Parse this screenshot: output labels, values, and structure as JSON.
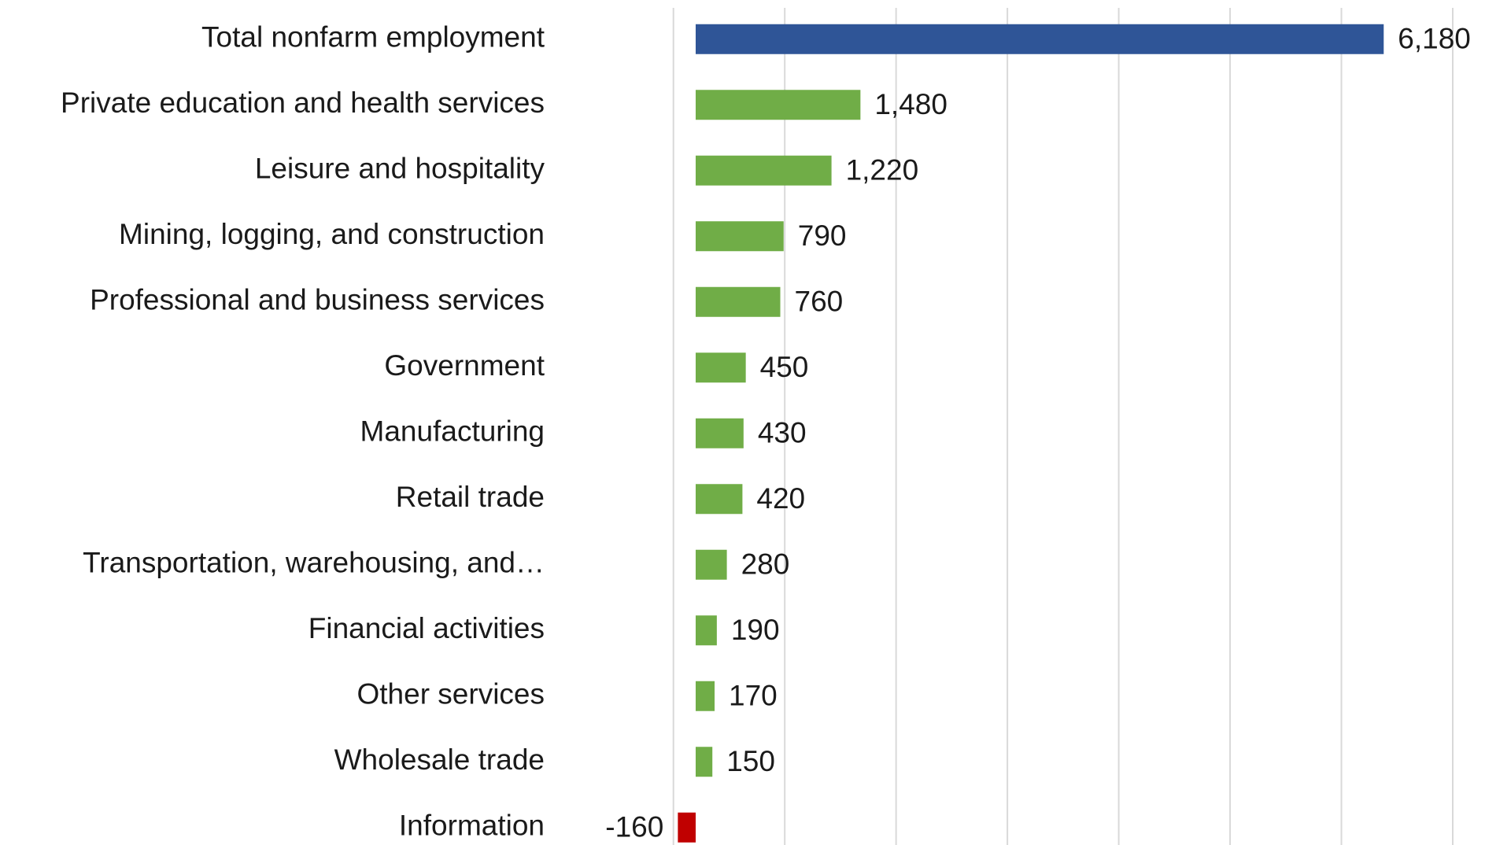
{
  "chart_data": {
    "type": "barh",
    "categories": [
      "Total nonfarm employment",
      "Private education and health services",
      "Leisure and hospitality",
      "Mining, logging, and construction",
      "Professional and business services",
      "Government",
      "Manufacturing",
      "Retail trade",
      "Transportation, warehousing, and…",
      "Financial activities",
      "Other services",
      "Wholesale trade",
      "Information"
    ],
    "values": [
      6180,
      1480,
      1220,
      790,
      760,
      450,
      430,
      420,
      280,
      190,
      170,
      150,
      -160
    ],
    "value_labels": [
      "6,180",
      "1,480",
      "1,220",
      "790",
      "760",
      "450",
      "430",
      "420",
      "280",
      "190",
      "170",
      "150",
      "-160"
    ],
    "colors": [
      "#2f5597",
      "#70ad47",
      "#70ad47",
      "#70ad47",
      "#70ad47",
      "#70ad47",
      "#70ad47",
      "#70ad47",
      "#70ad47",
      "#70ad47",
      "#70ad47",
      "#70ad47",
      "#c00000"
    ],
    "xlim": [
      -200,
      6800
    ],
    "xticks": [
      -200,
      800,
      1800,
      2800,
      3800,
      4800,
      5800,
      6800
    ],
    "grid": true
  }
}
